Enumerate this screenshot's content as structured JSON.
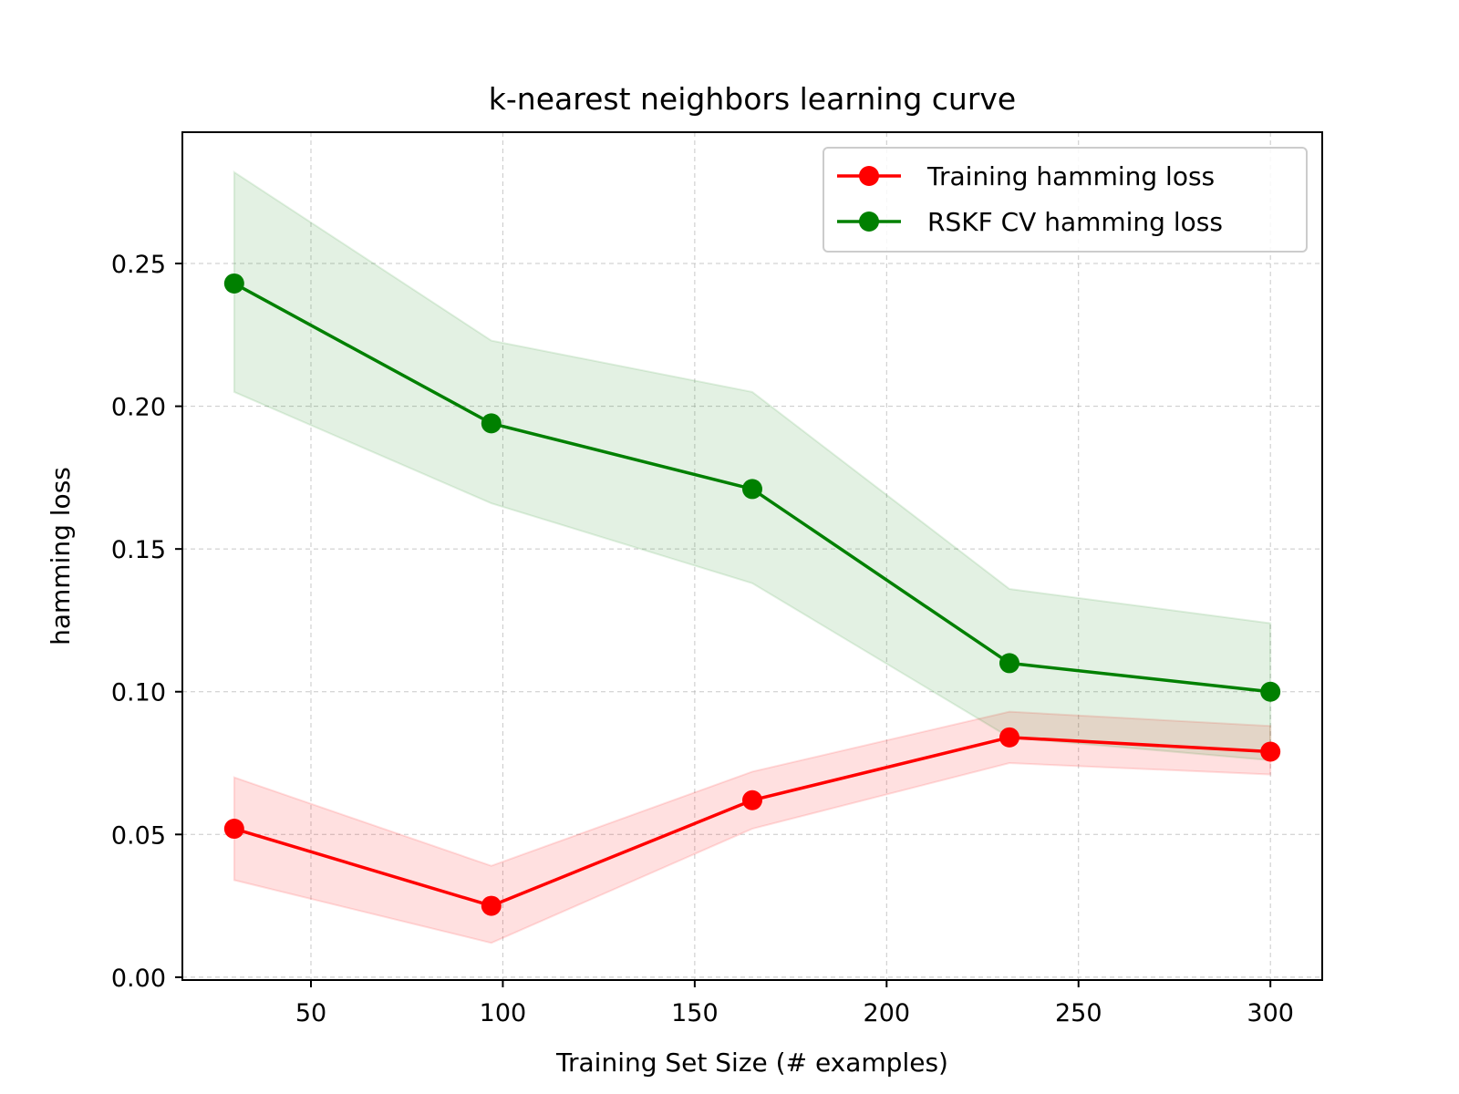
{
  "chart_data": {
    "type": "line",
    "title": "k-nearest neighbors learning curve",
    "xlabel": "Training Set Size (# examples)",
    "ylabel": "hamming loss",
    "xlim": [
      16.5,
      313.5
    ],
    "ylim": [
      -0.001,
      0.296
    ],
    "xticks": [
      50,
      100,
      150,
      200,
      250,
      300
    ],
    "xtick_labels": [
      "50",
      "100",
      "150",
      "200",
      "250",
      "300"
    ],
    "yticks": [
      0.0,
      0.05,
      0.1,
      0.15,
      0.2,
      0.25
    ],
    "ytick_labels": [
      "0.00",
      "0.05",
      "0.10",
      "0.15",
      "0.20",
      "0.25"
    ],
    "grid": true,
    "legend_position": "upper right",
    "x": [
      30,
      97,
      165,
      232,
      300
    ],
    "series": [
      {
        "name": "Training hamming loss",
        "color": "#ff0000",
        "values": [
          0.052,
          0.025,
          0.062,
          0.084,
          0.079
        ],
        "band_lower": [
          0.034,
          0.012,
          0.052,
          0.075,
          0.071
        ],
        "band_upper": [
          0.07,
          0.039,
          0.072,
          0.093,
          0.088
        ],
        "band_color": "#ff0000",
        "band_opacity": 0.12,
        "marker": "circle"
      },
      {
        "name": "RSKF CV hamming loss",
        "color": "#008000",
        "values": [
          0.243,
          0.194,
          0.171,
          0.11,
          0.1
        ],
        "band_lower": [
          0.205,
          0.166,
          0.138,
          0.084,
          0.076
        ],
        "band_upper": [
          0.282,
          0.223,
          0.205,
          0.136,
          0.124
        ],
        "band_color": "#008000",
        "band_opacity": 0.11,
        "marker": "circle"
      }
    ]
  }
}
